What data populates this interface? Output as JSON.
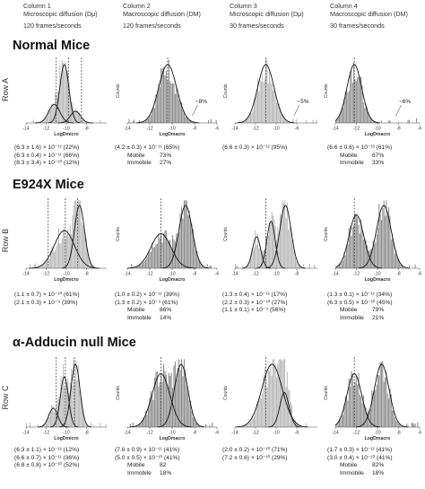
{
  "columns": [
    {
      "title": "Column 1",
      "subtitle": "Microscopic diffusion (Dμ)",
      "rate": "120 frames/seconds"
    },
    {
      "title": "Column 2",
      "subtitle": "Macroscopic diffusion (DM)",
      "rate": "120 frames/seconds"
    },
    {
      "title": "Column 3",
      "subtitle": "Microscopic diffusion (Dμ)",
      "rate": "30 frames/seconds"
    },
    {
      "title": "Column 4",
      "subtitle": "Macroscopic diffusion (DM)",
      "rate": "30 frames/seconds"
    }
  ],
  "sections": [
    {
      "title": "Normal Mice",
      "row_label": "Row A"
    },
    {
      "title": "E924X Mice",
      "row_label": "Row B"
    },
    {
      "title": "α-Adducin null Mice",
      "row_label": "Row C"
    }
  ],
  "stats": {
    "A1": [
      "(6.3 ± 1.6) × 10⁻¹² (22%)",
      "(6.3 ± 0.4) × 10⁻¹¹ (66%)",
      "(8.3 ± 3.4) × 10⁻¹⁰ (12%)"
    ],
    "A2": [
      "(4.2 ± 0.3) × 10⁻¹¹ (65%)"
    ],
    "A2m": {
      "mobile_label": "Mobile",
      "mobile": "73%",
      "immobile_label": "Immobile",
      "immobile": "27%"
    },
    "A3": [
      "(6.6 ± 0.3) × 10⁻¹² (95%)"
    ],
    "A4": [
      "(6.6 ± 0.6) × 10⁻¹³ (61%)"
    ],
    "A4m": {
      "mobile_label": "Mobile",
      "mobile": "67%",
      "immobile_label": "Immobile",
      "immobile": "33%"
    },
    "B1": [
      "(1.1 ± 0.7) × 10⁻¹⁰ (61%)",
      "(2.1 ± 0.3) × 10⁻⁹ (39%)"
    ],
    "B2": [
      "(1.0 ± 0.2) × 10⁻¹¹ (39%)",
      "(1.3 ± 0.2) × 10⁻⁹ (61%)"
    ],
    "B2m": {
      "mobile_label": "Mobile",
      "mobile": "86%",
      "immobile_label": "Immobile",
      "immobile": "14%"
    },
    "B3": [
      "(1.3 ± 0.4) × 10⁻¹² (17%)",
      "(2.2 ± 0.3) × 10⁻¹⁰ (27%)",
      "(1.1 ± 0.1) × 10⁻⁹ (56%)"
    ],
    "B4": [
      "(1.3 ± 0.1) × 10⁻¹² (34%)",
      "(6.3 ± 0.5) × 10⁻¹⁰ (45%)"
    ],
    "B4m": {
      "mobile_label": "Mobile",
      "mobile": "79%",
      "immobile_label": "Immobile",
      "immobile": "21%"
    },
    "C1": [
      "(6.3 ± 1.1) × 10⁻¹² (12%)",
      "(6.6 ± 0.7) × 10⁻¹¹ (36%)",
      "(6.8 ± 0.8) × 10⁻¹⁰ (52%)"
    ],
    "C2": [
      "(7.6 ± 0.9) × 10⁻¹¹ (41%)",
      "(5.0 ± 0.5) × 10⁻¹⁰ (41%)"
    ],
    "C2m": {
      "mobile_label": "Mobile",
      "mobile": "82",
      "immobile_label": "Immobile",
      "immobile": "18%"
    },
    "C3": [
      "(2.0 ± 0.2) × 10⁻¹⁰ (71%)",
      "(7.2 ± 0.6) × 10⁻¹⁰ (29%)"
    ],
    "C4": [
      "(1.7 ± 0.3) × 10⁻¹² (41%)",
      "(3.0 ± 0.4) × 10⁻¹⁰ (41%)"
    ],
    "C4m": {
      "mobile_label": "Mobile",
      "mobile": "82%",
      "immobile_label": "Immobile",
      "immobile": "18%"
    }
  },
  "chart_data": [
    {
      "id": "A1",
      "type": "bar",
      "xlabel": "LogDmicro",
      "ylabel": "",
      "xlim": [
        -14,
        -6
      ],
      "xticks": [
        "-14",
        "-12",
        "-10",
        "-8"
      ],
      "dashed_lines": [
        -11,
        -9.8,
        -8.5
      ],
      "components": [
        {
          "mu": -11.2,
          "sigma": 0.55,
          "amp": 0.32
        },
        {
          "mu": -10.2,
          "sigma": 0.45,
          "amp": 1.0
        },
        {
          "mu": -9.1,
          "sigma": 0.5,
          "amp": 0.2
        }
      ],
      "bar_color": "#b5b5b5"
    },
    {
      "id": "A2",
      "type": "bar",
      "xlabel": "LogDmacro",
      "ylabel": "Counts",
      "xlim": [
        -14,
        -6
      ],
      "xticks": [
        "-14",
        "-12",
        "-10",
        "-8",
        "-6"
      ],
      "dashed_lines": [
        -10.4
      ],
      "components": [
        {
          "mu": -10.4,
          "sigma": 0.8,
          "amp": 1.0
        }
      ],
      "annotation": "~8%",
      "bar_color": "#8c8c8c"
    },
    {
      "id": "A3",
      "type": "bar",
      "xlabel": "",
      "ylabel": "Counts",
      "xlim": [
        -14,
        -6
      ],
      "xticks": [
        "-14",
        "-12",
        "-10",
        "-8"
      ],
      "dashed_lines": [
        -11
      ],
      "components": [
        {
          "mu": -11,
          "sigma": 0.8,
          "amp": 1.0
        }
      ],
      "annotation": "~5%",
      "bar_color": "#b5b5b5"
    },
    {
      "id": "A4",
      "type": "bar",
      "xlabel": "LogDmacro",
      "ylabel": "Counts",
      "xlim": [
        -14,
        -6
      ],
      "xticks": [
        "-14",
        "-12",
        "-10",
        "-8",
        "-6"
      ],
      "dashed_lines": [
        -12.2
      ],
      "components": [
        {
          "mu": -12.2,
          "sigma": 0.7,
          "amp": 1.0
        }
      ],
      "annotation": "~6%",
      "bar_color": "#8c8c8c"
    },
    {
      "id": "B1",
      "type": "bar",
      "xlabel": "LogDmicro",
      "ylabel": "",
      "xlim": [
        -14,
        -6
      ],
      "xticks": [
        "-14",
        "-12",
        "-10",
        "-8"
      ],
      "dashed_lines": [
        -11.8,
        -10.1,
        -8.9
      ],
      "components": [
        {
          "mu": -10.2,
          "sigma": 1.0,
          "amp": 0.6
        },
        {
          "mu": -8.7,
          "sigma": 0.5,
          "amp": 1.0
        }
      ],
      "bar_color": "#b5b5b5"
    },
    {
      "id": "B2",
      "type": "bar",
      "xlabel": "LogDmacro",
      "ylabel": "Counts",
      "xlim": [
        -14,
        -6
      ],
      "xticks": [
        "-14",
        "-12",
        "-10",
        "-8",
        "-6"
      ],
      "dashed_lines": [
        -11
      ],
      "components": [
        {
          "mu": -11,
          "sigma": 0.9,
          "amp": 0.55
        },
        {
          "mu": -8.8,
          "sigma": 0.6,
          "amp": 1.0
        }
      ],
      "bar_color": "#8c8c8c"
    },
    {
      "id": "B3",
      "type": "bar",
      "xlabel": "",
      "ylabel": "Counts",
      "xlim": [
        -14,
        -6
      ],
      "xticks": [
        "-14",
        "-12",
        "-10",
        "-8"
      ],
      "dashed_lines": [
        -11
      ],
      "components": [
        {
          "mu": -11.9,
          "sigma": 0.4,
          "amp": 0.5
        },
        {
          "mu": -10.5,
          "sigma": 0.4,
          "amp": 0.75
        },
        {
          "mu": -9.1,
          "sigma": 0.55,
          "amp": 1.0
        }
      ],
      "bar_color": "#b5b5b5"
    },
    {
      "id": "B4",
      "type": "bar",
      "xlabel": "LogDmacro",
      "ylabel": "Counts",
      "xlim": [
        -14,
        -6
      ],
      "xticks": [
        "-14",
        "-12",
        "-10",
        "-8",
        "-6"
      ],
      "dashed_lines": [
        -12.2
      ],
      "components": [
        {
          "mu": -12,
          "sigma": 0.7,
          "amp": 0.85
        },
        {
          "mu": -9.4,
          "sigma": 0.7,
          "amp": 1.0
        }
      ],
      "bar_color": "#8c8c8c"
    },
    {
      "id": "C1",
      "type": "bar",
      "xlabel": "LogDmicro",
      "ylabel": "",
      "xlim": [
        -14,
        -6
      ],
      "xticks": [
        "-14",
        "-12",
        "-10",
        "-8"
      ],
      "dashed_lines": [
        -11,
        -10.1,
        -9.2
      ],
      "components": [
        {
          "mu": -11.3,
          "sigma": 0.45,
          "amp": 0.3
        },
        {
          "mu": -10.2,
          "sigma": 0.4,
          "amp": 0.8
        },
        {
          "mu": -9.1,
          "sigma": 0.45,
          "amp": 1.0
        }
      ],
      "bar_color": "#b5b5b5"
    },
    {
      "id": "C2",
      "type": "bar",
      "xlabel": "LogDmacro",
      "ylabel": "Counts",
      "xlim": [
        -14,
        -6
      ],
      "xticks": [
        "-14",
        "-12",
        "-10",
        "-8",
        "-6"
      ],
      "dashed_lines": [
        -11
      ],
      "components": [
        {
          "mu": -11,
          "sigma": 0.8,
          "amp": 0.85
        },
        {
          "mu": -9.2,
          "sigma": 0.6,
          "amp": 1.0
        }
      ],
      "bar_color": "#8c8c8c"
    },
    {
      "id": "C3",
      "type": "bar",
      "xlabel": "",
      "ylabel": "Counts",
      "xlim": [
        -14,
        -6
      ],
      "xticks": [
        "-14",
        "-12",
        "-10",
        "-8"
      ],
      "dashed_lines": [
        -11
      ],
      "components": [
        {
          "mu": -10.4,
          "sigma": 1.0,
          "amp": 1.0
        },
        {
          "mu": -9.2,
          "sigma": 0.45,
          "amp": 0.55
        }
      ],
      "bar_color": "#b5b5b5"
    },
    {
      "id": "C4",
      "type": "bar",
      "xlabel": "LogDmacro",
      "ylabel": "Counts",
      "xlim": [
        -14,
        -6
      ],
      "xticks": [
        "-14",
        "-12",
        "-10",
        "-8",
        "-6"
      ],
      "dashed_lines": [
        -12.2
      ],
      "components": [
        {
          "mu": -12.2,
          "sigma": 0.7,
          "amp": 0.85
        },
        {
          "mu": -9.6,
          "sigma": 0.7,
          "amp": 1.0
        }
      ],
      "bar_color": "#8c8c8c"
    }
  ]
}
